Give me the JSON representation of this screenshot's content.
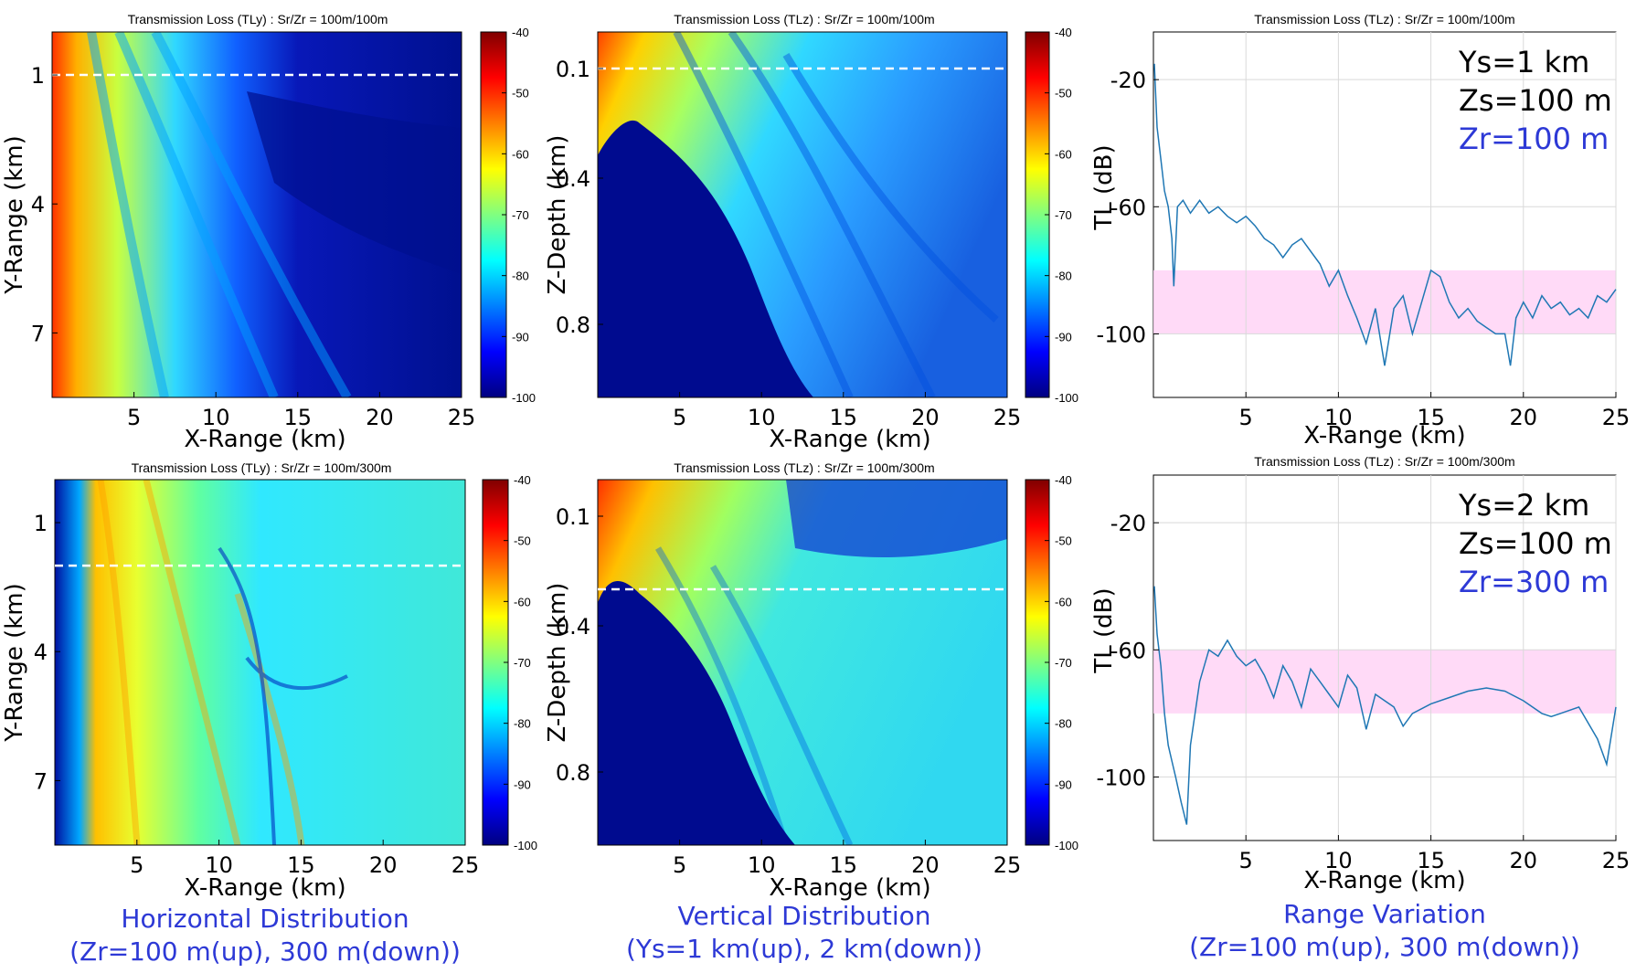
{
  "colorbar_ticks": [
    "-40",
    "-50",
    "-60",
    "-70",
    "-80",
    "-90",
    "-100"
  ],
  "chart_data": [
    {
      "type": "heatmap",
      "title": "Transmission Loss (TLy) : Sr/Zr = 100m/100m",
      "xlabel": "X-Range (km)",
      "ylabel": "Y-Range (km)",
      "xlim": [
        0,
        25
      ],
      "ylim": [
        0,
        8.5
      ],
      "y_reversed": true,
      "xticks": [
        "5",
        "10",
        "15",
        "20",
        "25"
      ],
      "yticks": [
        "1",
        "4",
        "7"
      ],
      "colorbar_range": [
        -100,
        -40
      ],
      "colormap": "jet",
      "marker_line_y": 1
    },
    {
      "type": "heatmap",
      "title": "Transmission Loss (TLz) : Sr/Zr = 100m/100m",
      "xlabel": "X-Range (km)",
      "ylabel": "Z-Depth (km)",
      "xlim": [
        0,
        25
      ],
      "ylim": [
        0,
        1
      ],
      "y_reversed": true,
      "xticks": [
        "5",
        "10",
        "15",
        "20",
        "25"
      ],
      "yticks": [
        "0.1",
        "0.4",
        "0.8"
      ],
      "colorbar_range": [
        -100,
        -40
      ],
      "colormap": "jet",
      "marker_line_y": 0.1
    },
    {
      "type": "line",
      "title": "Transmission Loss (TLz) : Sr/Zr = 100m/100m",
      "xlabel": "X-Range (km)",
      "ylabel": "TL (dB)",
      "xlim": [
        0,
        25
      ],
      "ylim": [
        -120,
        -5
      ],
      "xticks": [
        "5",
        "10",
        "15",
        "20",
        "25"
      ],
      "yticks": [
        "-20",
        "-60",
        "-100"
      ],
      "grid": true,
      "band": [
        -100,
        -80
      ],
      "annotations": [
        "Ys=1 km",
        "Zs=100 m",
        "Zr=100 m"
      ],
      "x": [
        0.05,
        0.2,
        0.4,
        0.6,
        0.8,
        1.0,
        1.1,
        1.3,
        1.6,
        2.0,
        2.5,
        3.0,
        3.5,
        4.0,
        4.5,
        5.0,
        5.5,
        6.0,
        6.5,
        7.0,
        7.5,
        8.0,
        8.5,
        9.0,
        9.5,
        10.0,
        10.5,
        11.0,
        11.5,
        12.0,
        12.5,
        13.0,
        13.5,
        14.0,
        14.5,
        15.0,
        15.5,
        16.0,
        16.5,
        17.0,
        17.5,
        18.0,
        18.5,
        19.0,
        19.3,
        19.6,
        20.0,
        20.5,
        21.0,
        21.5,
        22.0,
        22.5,
        23.0,
        23.5,
        24.0,
        24.5,
        25.0
      ],
      "y": [
        -15,
        -35,
        -45,
        -55,
        -60,
        -70,
        -85,
        -60,
        -58,
        -62,
        -58,
        -62,
        -60,
        -63,
        -65,
        -63,
        -66,
        -70,
        -72,
        -76,
        -72,
        -70,
        -74,
        -78,
        -85,
        -80,
        -88,
        -95,
        -103,
        -92,
        -110,
        -92,
        -88,
        -100,
        -90,
        -80,
        -82,
        -90,
        -95,
        -92,
        -96,
        -98,
        -100,
        -100,
        -110,
        -95,
        -90,
        -95,
        -88,
        -92,
        -90,
        -94,
        -92,
        -95,
        -88,
        -90,
        -86
      ]
    },
    {
      "type": "heatmap",
      "title": "Transmission Loss (TLy) : Sr/Zr = 100m/300m",
      "xlabel": "X-Range (km)",
      "ylabel": "Y-Range (km)",
      "xlim": [
        0,
        25
      ],
      "ylim": [
        0,
        8.5
      ],
      "y_reversed": true,
      "xticks": [
        "5",
        "10",
        "15",
        "20",
        "25"
      ],
      "yticks": [
        "1",
        "4",
        "7"
      ],
      "colorbar_range": [
        -100,
        -40
      ],
      "colormap": "jet",
      "marker_line_y": 2
    },
    {
      "type": "heatmap",
      "title": "Transmission Loss (TLz) : Sr/Zr = 100m/300m",
      "xlabel": "X-Range (km)",
      "ylabel": "Z-Depth (km)",
      "xlim": [
        0,
        25
      ],
      "ylim": [
        0,
        1
      ],
      "y_reversed": true,
      "xticks": [
        "5",
        "10",
        "15",
        "20",
        "25"
      ],
      "yticks": [
        "0.1",
        "0.4",
        "0.8"
      ],
      "colorbar_range": [
        -100,
        -40
      ],
      "colormap": "jet",
      "marker_line_y": 0.3
    },
    {
      "type": "line",
      "title": "Transmission Loss (TLz) : Sr/Zr = 100m/300m",
      "xlabel": "X-Range (km)",
      "ylabel": "TL (dB)",
      "xlim": [
        0,
        25
      ],
      "ylim": [
        -120,
        -5
      ],
      "xticks": [
        "5",
        "10",
        "15",
        "20",
        "25"
      ],
      "yticks": [
        "-20",
        "-60",
        "-100"
      ],
      "grid": true,
      "band": [
        -80,
        -60
      ],
      "annotations": [
        "Ys=2 km",
        "Zs=100 m",
        "Zr=300 m"
      ],
      "x": [
        0.05,
        0.2,
        0.4,
        0.6,
        0.8,
        1.0,
        1.2,
        1.5,
        1.8,
        2.0,
        2.5,
        3.0,
        3.5,
        4.0,
        4.5,
        5.0,
        5.5,
        6.0,
        6.5,
        7.0,
        7.5,
        8.0,
        8.5,
        9.0,
        9.5,
        10.0,
        10.5,
        11.0,
        11.5,
        12.0,
        13.0,
        13.5,
        14.0,
        15.0,
        16.0,
        17.0,
        18.0,
        19.0,
        20.0,
        21.0,
        21.5,
        22.0,
        23.0,
        24.0,
        24.5,
        25.0
      ],
      "y": [
        -40,
        -55,
        -65,
        -80,
        -90,
        -95,
        -100,
        -108,
        -115,
        -90,
        -70,
        -60,
        -62,
        -57,
        -62,
        -65,
        -63,
        -68,
        -75,
        -65,
        -70,
        -78,
        -66,
        -70,
        -74,
        -78,
        -68,
        -72,
        -85,
        -74,
        -78,
        -84,
        -80,
        -77,
        -75,
        -73,
        -72,
        -73,
        -76,
        -80,
        -81,
        -80,
        -78,
        -88,
        -96,
        -78
      ]
    }
  ],
  "captions": {
    "col1_line1": "Horizontal Distribution",
    "col1_line2": "(Zr=100 m(up), 300 m(down))",
    "col2_line1": "Vertical Distribution",
    "col2_line2": "(Ys=1 km(up), 2 km(down))",
    "col3_line1": "Range Variation",
    "col3_line2": "(Zr=100 m(up), 300 m(down))"
  }
}
